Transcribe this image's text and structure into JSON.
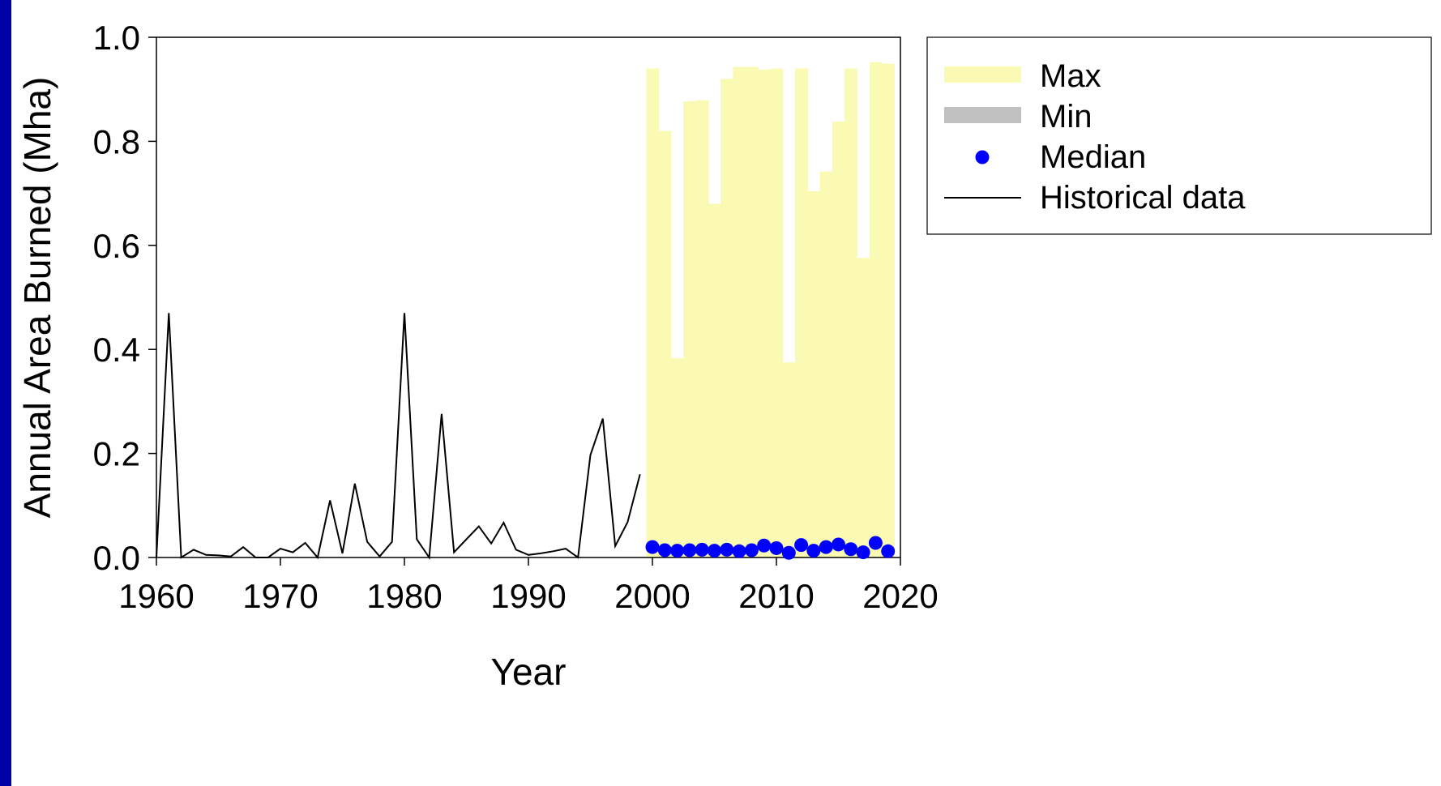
{
  "colors": {
    "frame": "#0000a8",
    "max": "#fafab4",
    "min": "#c0c0c0",
    "median": "#0000ff",
    "historical": "#000000"
  },
  "chart_data": {
    "type": "line",
    "xlabel": "Year",
    "ylabel": "Annual Area Burned (Mha)",
    "xlim": [
      1960,
      2020
    ],
    "ylim": [
      0,
      1.0
    ],
    "x_ticks": [
      "1960",
      "1970",
      "1980",
      "1990",
      "2000",
      "2010",
      "2020"
    ],
    "y_ticks": [
      "0.0",
      "0.2",
      "0.4",
      "0.6",
      "0.8",
      "1.0"
    ],
    "grid": false,
    "legend_position": "outside-right-top",
    "legend": [
      {
        "label": "Max",
        "kind": "band"
      },
      {
        "label": "Min",
        "kind": "band"
      },
      {
        "label": "Median",
        "kind": "marker"
      },
      {
        "label": "Historical data",
        "kind": "line"
      }
    ],
    "historical": {
      "name": "Historical data",
      "x": [
        1960,
        1961,
        1962,
        1963,
        1964,
        1965,
        1966,
        1967,
        1968,
        1969,
        1970,
        1971,
        1972,
        1973,
        1974,
        1975,
        1976,
        1977,
        1978,
        1979,
        1980,
        1981,
        1982,
        1983,
        1984,
        1985,
        1986,
        1987,
        1988,
        1989,
        1990,
        1991,
        1992,
        1993,
        1994,
        1995,
        1996,
        1997,
        1998,
        1999
      ],
      "y": [
        0.0,
        0.47,
        0.0,
        0.015,
        0.005,
        0.004,
        0.002,
        0.02,
        0.0,
        0.0,
        0.017,
        0.01,
        0.028,
        0.0,
        0.11,
        0.008,
        0.142,
        0.03,
        0.002,
        0.03,
        0.47,
        0.035,
        0.0,
        0.276,
        0.01,
        0.035,
        0.06,
        0.027,
        0.067,
        0.015,
        0.005,
        0.008,
        0.012,
        0.017,
        0.0,
        0.197,
        0.267,
        0.022,
        0.068,
        0.16
      ]
    },
    "projection": {
      "x": [
        2000,
        2001,
        2002,
        2003,
        2004,
        2005,
        2006,
        2007,
        2008,
        2009,
        2010,
        2011,
        2012,
        2013,
        2014,
        2015,
        2016,
        2017,
        2018,
        2019
      ],
      "max": [
        0.94,
        0.82,
        0.383,
        0.877,
        0.879,
        0.68,
        0.92,
        0.943,
        0.943,
        0.938,
        0.94,
        0.375,
        0.94,
        0.704,
        0.742,
        0.838,
        0.94,
        0.576,
        0.952,
        0.949
      ],
      "min": [
        0,
        0,
        0,
        0,
        0,
        0,
        0,
        0,
        0,
        0,
        0,
        0,
        0,
        0,
        0,
        0,
        0,
        0,
        0,
        0
      ],
      "median": [
        0.02,
        0.014,
        0.013,
        0.014,
        0.015,
        0.013,
        0.015,
        0.012,
        0.014,
        0.023,
        0.018,
        0.009,
        0.024,
        0.013,
        0.02,
        0.025,
        0.016,
        0.01,
        0.028,
        0.012
      ]
    }
  }
}
